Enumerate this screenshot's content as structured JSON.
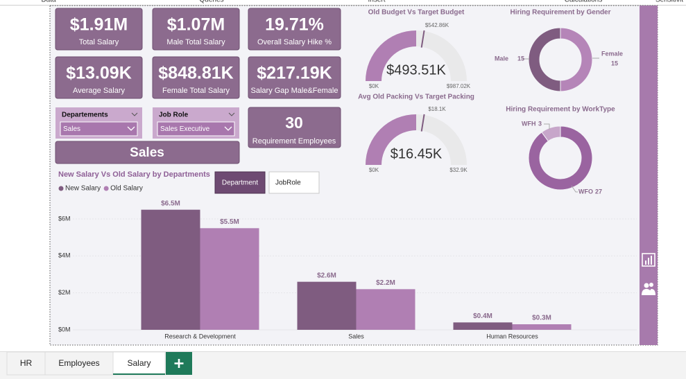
{
  "ribbon": [
    "Data",
    "Queries",
    "Insert",
    "Calculations",
    "Sensitivit"
  ],
  "kpis": [
    {
      "value": "$1.91M",
      "label": "Total Salary"
    },
    {
      "value": "$1.07M",
      "label": "Male Total Salary"
    },
    {
      "value": "19.71%",
      "label": "Overall Salary Hike %"
    },
    {
      "value": "$13.09K",
      "label": "Average Salary"
    },
    {
      "value": "$848.81K",
      "label": "Female Total Salary"
    },
    {
      "value": "$217.19K",
      "label": "Salary Gap Male&Female"
    }
  ],
  "slicers": [
    {
      "label": "Departements",
      "selected": "Sales"
    },
    {
      "label": "Job Role",
      "selected": "Sales Executive"
    }
  ],
  "selected_title": "Sales",
  "requirement": {
    "value": "30",
    "label": "Requirement Employees"
  },
  "gauges": [
    {
      "title": "Old Budget Vs Target Budget",
      "min": 0,
      "max": 987.02,
      "target": 542.86,
      "value": 493.51,
      "min_label": "$0K",
      "max_label": "$987.02K",
      "target_label": "$542.86K",
      "value_label": "$493.51K"
    },
    {
      "title": "Avg Old Packing Vs Target Packing",
      "min": 0,
      "max": 32.9,
      "target": 18.1,
      "value": 16.45,
      "min_label": "$0K",
      "max_label": "$32.9K",
      "target_label": "$18.1K",
      "value_label": "$16.45K"
    }
  ],
  "donuts": [
    {
      "title": "Hiring Requirement by Gender",
      "categories": [
        "Female",
        "Male"
      ],
      "values": [
        15,
        15
      ],
      "colors": [
        "#b585b8",
        "#7f5c80"
      ]
    },
    {
      "title": "Hiring Requirement by WorkType",
      "categories": [
        "WFO",
        "WFH"
      ],
      "values": [
        27,
        3
      ],
      "colors": [
        "#9a64a0",
        "#c7a6ca"
      ]
    }
  ],
  "buttons": [
    "Department",
    "JobRole"
  ],
  "chart_data": {
    "type": "bar",
    "title": "New Salary Vs Old Salary by Departments",
    "categories": [
      "Research & Development",
      "Sales",
      "Human Resources"
    ],
    "series": [
      {
        "name": "New Salary",
        "color": "#7f5c80",
        "values": [
          6.5,
          2.6,
          0.4
        ],
        "value_labels": [
          "$6.5M",
          "$2.6M",
          "$0.4M"
        ]
      },
      {
        "name": "Old Salary",
        "color": "#b07fb3",
        "values": [
          5.5,
          2.2,
          0.3
        ],
        "value_labels": [
          "$5.5M",
          "$2.2M",
          "$0.3M"
        ]
      }
    ],
    "ylim": [
      0,
      6.6
    ],
    "yticks": [
      {
        "value": 0,
        "label": "$0M"
      },
      {
        "value": 2,
        "label": "$2M"
      },
      {
        "value": 4,
        "label": "$4M"
      },
      {
        "value": 6,
        "label": "$6M"
      }
    ],
    "grid": true
  },
  "tabs": [
    "HR",
    "Employees",
    "Salary"
  ],
  "active_tab": 2
}
